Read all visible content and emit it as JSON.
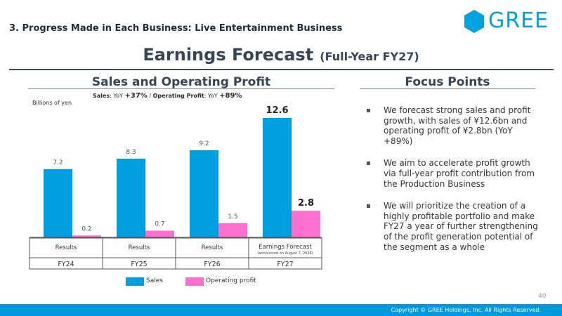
{
  "header": {
    "section_title": "3. Progress Made in Each Business: Live Entertainment Business",
    "logo_text": "GREE",
    "title_main": "Earnings Forecast",
    "title_sub": "(Full-Year FY27)"
  },
  "left_panel": {
    "heading": "Sales and Operating Profit",
    "growth_sales_label": "Sales",
    "growth_yoy_1": ": YoY ",
    "growth_sales_pct": "+37%",
    "growth_sep": " / ",
    "growth_op_label": "Operating Profit",
    "growth_yoy_2": ": YoY ",
    "growth_op_pct": "+89%",
    "unit": "Billions of yen"
  },
  "right_panel": {
    "heading": "Focus Points",
    "bullets": [
      "We forecast strong sales and profit growth, with sales of ¥12.6bn and operating profit of ¥2.8bn (YoY +89%)",
      "We aim to accelerate profit growth via full-year profit contribution from the Production Business",
      "We will prioritize the creation of a highly profitable portfolio and make FY27 a year of further strengthening of the profit generation potential of the segment as a whole"
    ]
  },
  "chart_data": {
    "type": "bar",
    "categories": [
      "FY24",
      "FY25",
      "FY26",
      "FY27"
    ],
    "sub_labels": [
      "Results",
      "Results",
      "Results",
      "Earnings Forecast"
    ],
    "sub_notes": [
      "",
      "",
      "",
      "(announced on August 7, 2026)"
    ],
    "series": [
      {
        "name": "Sales",
        "values": [
          7.2,
          8.3,
          9.2,
          12.6
        ],
        "color": "#009fdf"
      },
      {
        "name": "Operating profit",
        "values": [
          0.2,
          0.7,
          1.5,
          2.8
        ],
        "color": "#ff6fcf"
      }
    ],
    "value_labels": {
      "Sales": [
        "7.2",
        "8.3",
        "9.2",
        "12.6"
      ],
      "Operating profit": [
        "0.2",
        "0.7",
        "1.5",
        "2.8"
      ]
    },
    "ylim": [
      0,
      12.6
    ],
    "ylabel": "Billions of yen",
    "legend": "bottom",
    "grid": false
  },
  "footer": {
    "page_number": "40",
    "copyright": "Copyright © GREE Holdings, Inc. All Rights Reserved."
  },
  "colors": {
    "brand": "#00a3e0",
    "footer_bar": "#0099e0",
    "sales": "#009fdf",
    "operating_profit": "#ff6fcf"
  }
}
